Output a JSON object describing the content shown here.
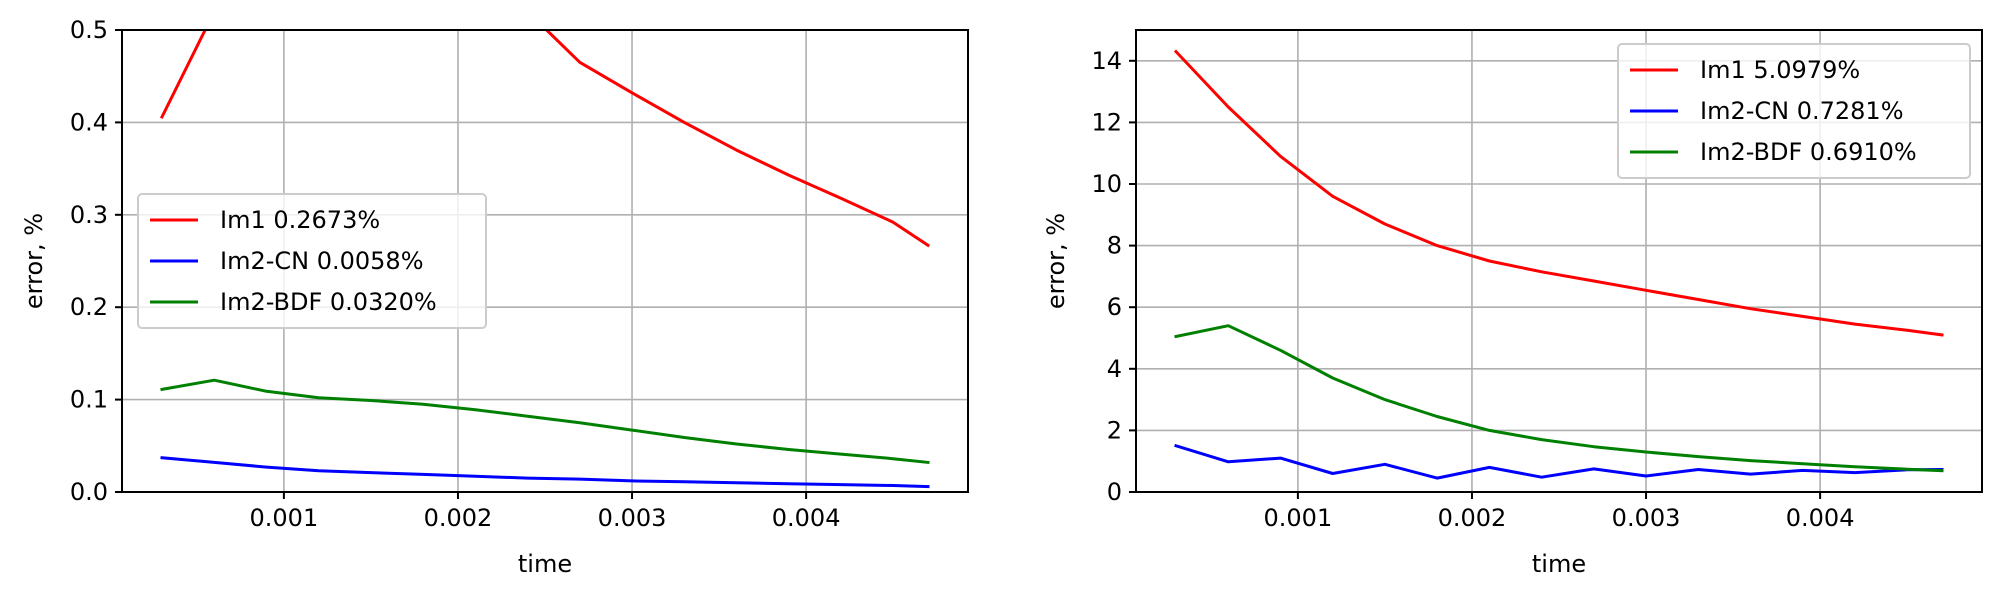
{
  "chart_data": [
    {
      "type": "line",
      "xlabel": "time",
      "ylabel": "error, %",
      "xlim": [
        7e-05,
        0.00493
      ],
      "ylim": [
        0.0,
        0.5
      ],
      "xticks": [
        0.001,
        0.002,
        0.003,
        0.004
      ],
      "xtick_labels": [
        "0.001",
        "0.002",
        "0.003",
        "0.004"
      ],
      "yticks": [
        0.0,
        0.1,
        0.2,
        0.3,
        0.4,
        0.5
      ],
      "ytick_labels": [
        "0.0",
        "0.1",
        "0.2",
        "0.3",
        "0.4",
        "0.5"
      ],
      "grid": true,
      "legend_position": "center-left",
      "series": [
        {
          "name": "Im1 0.2673%",
          "color": "#ff0000",
          "x": [
            0.0003,
            0.0006,
            0.0024,
            0.0027,
            0.003,
            0.0033,
            0.0036,
            0.0039,
            0.0042,
            0.0045,
            0.0047
          ],
          "y": [
            0.406,
            0.52,
            0.52,
            0.465,
            0.432,
            0.4,
            0.37,
            0.343,
            0.318,
            0.292,
            0.267
          ]
        },
        {
          "name": "Im2-CN 0.0058%",
          "color": "#0000ff",
          "x": [
            0.0003,
            0.0006,
            0.0009,
            0.0012,
            0.0015,
            0.0018,
            0.0021,
            0.0024,
            0.0027,
            0.003,
            0.0033,
            0.0036,
            0.0039,
            0.0042,
            0.0045,
            0.0047
          ],
          "y": [
            0.037,
            0.032,
            0.027,
            0.023,
            0.021,
            0.019,
            0.017,
            0.015,
            0.014,
            0.012,
            0.011,
            0.01,
            0.009,
            0.008,
            0.007,
            0.0058
          ]
        },
        {
          "name": "Im2-BDF 0.0320%",
          "color": "#008000",
          "x": [
            0.0003,
            0.0006,
            0.0009,
            0.0012,
            0.0015,
            0.0018,
            0.0021,
            0.0024,
            0.0027,
            0.003,
            0.0033,
            0.0036,
            0.0039,
            0.0042,
            0.0045,
            0.0047
          ],
          "y": [
            0.111,
            0.121,
            0.109,
            0.102,
            0.099,
            0.095,
            0.089,
            0.082,
            0.075,
            0.067,
            0.059,
            0.052,
            0.046,
            0.041,
            0.036,
            0.032
          ]
        }
      ]
    },
    {
      "type": "line",
      "xlabel": "time",
      "ylabel": "error, %",
      "xlim": [
        7e-05,
        0.00493
      ],
      "ylim": [
        0,
        15
      ],
      "xticks": [
        0.001,
        0.002,
        0.003,
        0.004
      ],
      "xtick_labels": [
        "0.001",
        "0.002",
        "0.003",
        "0.004"
      ],
      "yticks": [
        0,
        2,
        4,
        6,
        8,
        10,
        12,
        14
      ],
      "ytick_labels": [
        "0",
        "2",
        "4",
        "6",
        "8",
        "10",
        "12",
        "14"
      ],
      "grid": true,
      "legend_position": "top-right",
      "series": [
        {
          "name": "Im1 5.0979%",
          "color": "#ff0000",
          "x": [
            0.0003,
            0.0006,
            0.0009,
            0.0012,
            0.0015,
            0.0018,
            0.0021,
            0.0024,
            0.0027,
            0.003,
            0.0033,
            0.0036,
            0.0039,
            0.0042,
            0.0045,
            0.0047
          ],
          "y": [
            14.3,
            12.5,
            10.9,
            9.6,
            8.7,
            8.0,
            7.5,
            7.15,
            6.85,
            6.55,
            6.25,
            5.95,
            5.7,
            5.45,
            5.25,
            5.1
          ]
        },
        {
          "name": "Im2-CN 0.7281%",
          "color": "#0000ff",
          "x": [
            0.0003,
            0.0006,
            0.0009,
            0.0012,
            0.0015,
            0.0018,
            0.0021,
            0.0024,
            0.0027,
            0.003,
            0.0033,
            0.0036,
            0.0039,
            0.0042,
            0.0045,
            0.0047
          ],
          "y": [
            1.5,
            0.98,
            1.1,
            0.6,
            0.9,
            0.45,
            0.8,
            0.48,
            0.75,
            0.52,
            0.73,
            0.58,
            0.7,
            0.63,
            0.72,
            0.73
          ]
        },
        {
          "name": "Im2-BDF 0.6910%",
          "color": "#008000",
          "x": [
            0.0003,
            0.0006,
            0.0009,
            0.0012,
            0.0015,
            0.0018,
            0.0021,
            0.0024,
            0.0027,
            0.003,
            0.0033,
            0.0036,
            0.0039,
            0.0042,
            0.0045,
            0.0047
          ],
          "y": [
            5.05,
            5.4,
            4.6,
            3.7,
            3.0,
            2.45,
            2.0,
            1.7,
            1.47,
            1.3,
            1.15,
            1.02,
            0.92,
            0.82,
            0.74,
            0.69
          ]
        }
      ]
    }
  ]
}
